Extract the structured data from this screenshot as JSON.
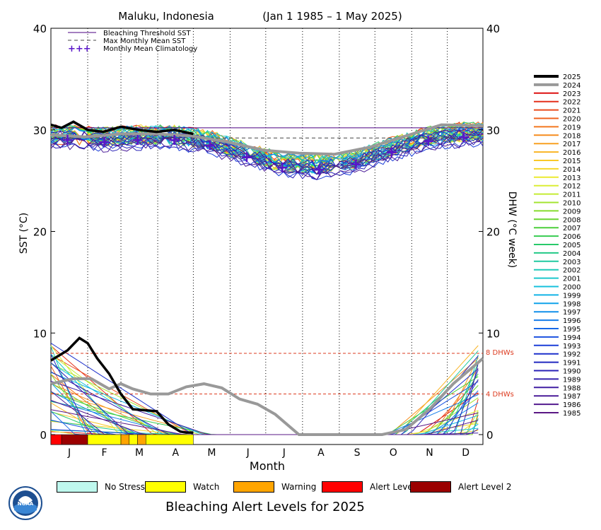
{
  "header": {
    "location": "Maluku, Indonesia",
    "period": "(Jan 1 1985 – 1 May 2025)"
  },
  "axes": {
    "left_label": "SST (°C)",
    "right_label": "DHW (°C week)",
    "x_label": "Month",
    "left_ticks": [
      "40",
      "30",
      "20",
      "10",
      "0"
    ],
    "right_ticks": [
      "40",
      "30",
      "20",
      "10",
      "0"
    ],
    "months": [
      "J",
      "F",
      "M",
      "A",
      "M",
      "J",
      "J",
      "A",
      "S",
      "O",
      "N",
      "D"
    ]
  },
  "plot_legend": {
    "threshold": "Bleaching Threshold SST",
    "mmm": "Max Monthly Mean SST",
    "climatology": "Monthly Mean Climatology"
  },
  "dhw_lines": {
    "eight": "8 DHWs",
    "four": "4 DHWs"
  },
  "years": [
    "2025",
    "2024",
    "2023",
    "2022",
    "2021",
    "2020",
    "2019",
    "2018",
    "2017",
    "2016",
    "2015",
    "2014",
    "2013",
    "2012",
    "2011",
    "2010",
    "2009",
    "2008",
    "2007",
    "2006",
    "2005",
    "2004",
    "2003",
    "2002",
    "2001",
    "2000",
    "1999",
    "1998",
    "1997",
    "1996",
    "1995",
    "1994",
    "1993",
    "1992",
    "1991",
    "1990",
    "1989",
    "1988",
    "1987",
    "1986",
    "1985"
  ],
  "alert_legend": [
    {
      "label": "No Stress",
      "color": "#bff8ee"
    },
    {
      "label": "Watch",
      "color": "#ffff00"
    },
    {
      "label": "Warning",
      "color": "#ffa500"
    },
    {
      "label": "Alert Level 1",
      "color": "#ff0000"
    },
    {
      "label": "Alert Level 2",
      "color": "#9b0000"
    }
  ],
  "footer_title": "Bleaching Alert Levels for 2025",
  "logo_text": "NOAA",
  "colors": {
    "threshold": "#4b0082",
    "mmm": "#444444",
    "climatology": "#5a17c9",
    "dhw_ref": "#dd3b1f",
    "current_year": "#000000",
    "previous_year": "#999999"
  },
  "chart_data": {
    "type": "line",
    "title": "Maluku, Indonesia (Jan 1 1985 – 1 May 2025)",
    "xlabel": "Month",
    "ylabel_left": "SST (°C)",
    "ylabel_right": "DHW (°C week)",
    "ylim": [
      0,
      40
    ],
    "y2lim": [
      0,
      40
    ],
    "x_unit": "day_of_year",
    "xlim": [
      1,
      365
    ],
    "bleaching_threshold_sst": 30.2,
    "max_monthly_mean_sst": 29.2,
    "dhw_reference_levels": [
      4,
      8
    ],
    "climatology": {
      "x": [
        15,
        46,
        74,
        105,
        135,
        166,
        196,
        227,
        258,
        288,
        319,
        349
      ],
      "y": [
        29.0,
        28.8,
        29.0,
        29.0,
        28.5,
        27.3,
        26.3,
        26.1,
        26.6,
        27.8,
        28.9,
        29.3
      ]
    },
    "series": [
      {
        "name": "2025",
        "sst": {
          "x": [
            1,
            10,
            20,
            32,
            45,
            60,
            75,
            90,
            105,
            121
          ],
          "y": [
            30.5,
            30.2,
            30.8,
            30.0,
            29.8,
            30.3,
            30.0,
            29.8,
            30.0,
            29.6
          ]
        },
        "dhw": {
          "x": [
            1,
            15,
            25,
            32,
            40,
            50,
            60,
            70,
            80,
            90,
            100,
            110,
            115,
            121
          ],
          "y": [
            7.3,
            8.3,
            9.5,
            9.0,
            7.5,
            6.0,
            4.0,
            2.5,
            2.4,
            2.3,
            1.0,
            0.3,
            0.2,
            0.2
          ]
        }
      },
      {
        "name": "2024",
        "sst": {
          "x": [
            1,
            30,
            60,
            90,
            120,
            150,
            180,
            210,
            240,
            270,
            300,
            330,
            365
          ],
          "y": [
            29.5,
            29.3,
            29.6,
            29.6,
            29.4,
            28.8,
            28.0,
            27.7,
            27.6,
            28.3,
            29.4,
            30.5,
            30.4
          ]
        },
        "dhw": {
          "x": [
            1,
            20,
            35,
            50,
            60,
            70,
            85,
            100,
            115,
            130,
            145,
            160,
            175,
            190,
            210,
            250,
            280,
            300,
            320,
            340,
            365
          ],
          "y": [
            5.0,
            5.5,
            5.5,
            4.5,
            5.0,
            4.5,
            4.0,
            4.0,
            4.7,
            5.0,
            4.6,
            3.5,
            3.0,
            2.0,
            0.0,
            0.0,
            0.0,
            0.5,
            2.5,
            5.0,
            7.5
          ]
        }
      }
    ]
  }
}
